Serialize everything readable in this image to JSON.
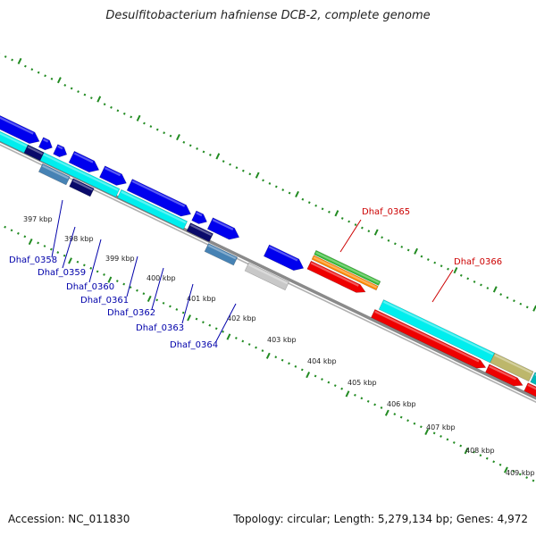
{
  "title": "Desulfitobacterium hafniense DCB-2, complete genome",
  "accession": "Accession: NC_011830",
  "topology": "Topology: circular; Length: 5,279,134 bp; Genes: 4,972",
  "colors": {
    "forward_cds": "#0000ee",
    "rna_cyan": "#00eeee",
    "steel": "#4682b4",
    "navy": "#0a0a6a",
    "grey": "#c8c8c8",
    "red": "#ee0000",
    "green": "#33bb33",
    "orange": "#ff8800",
    "khaki": "#bdb76b",
    "teal": "#00b8b8",
    "backbone": "#888888",
    "tick": "#228b22",
    "label_blue": "#0000aa",
    "label_red": "#cc0000"
  },
  "ticks": [
    "397 kbp",
    "398 kbp",
    "399 kbp",
    "400 kbp",
    "401 kbp",
    "402 kbp",
    "403 kbp",
    "404 kbp",
    "405 kbp",
    "406 kbp",
    "407 kbp",
    "408 kbp",
    "409 kbp"
  ],
  "left_labels": [
    "Dhaf_0358",
    "Dhaf_0359",
    "Dhaf_0360",
    "Dhaf_0361",
    "Dhaf_0362",
    "Dhaf_0363",
    "Dhaf_0364"
  ],
  "right_labels": [
    "Dhaf_0365",
    "Dhaf_0366"
  ]
}
